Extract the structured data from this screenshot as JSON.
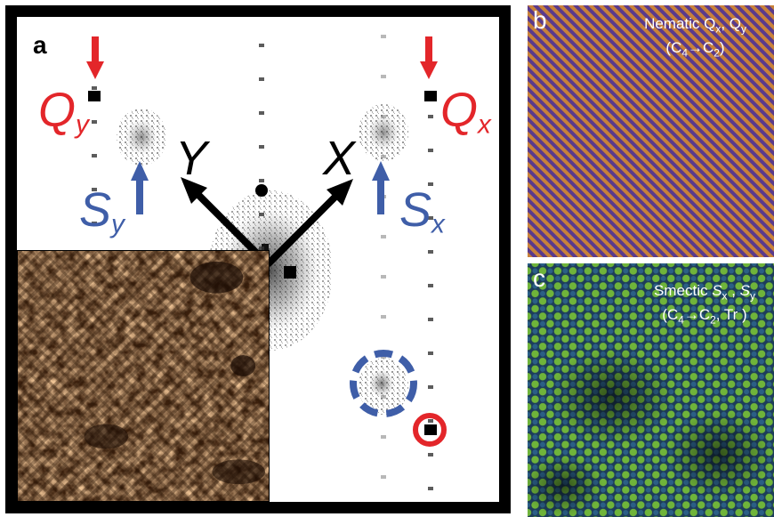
{
  "panel_a": {
    "letter": "a",
    "labels": {
      "qy_main": "Q",
      "qy_sub": "y",
      "qx_main": "Q",
      "qx_sub": "x",
      "sy_main": "S",
      "sy_sub": "y",
      "sx_main": "S",
      "sx_sub": "x",
      "axis_y": "Y",
      "axis_x": "X"
    }
  },
  "panel_b": {
    "letter": "b",
    "title_line1": "Nematic  Q",
    "title_sub1": "x",
    "title_sep": ", Q",
    "title_sub2": "y",
    "title_line2_a": "(C",
    "title_line2_sub_a": "4",
    "title_line2_arrow": "→C",
    "title_line2_sub_b": "2",
    "title_line2_b": ")"
  },
  "panel_c": {
    "letter": "c",
    "title_line1": "Smectic ",
    "title_s1": "S",
    "title_sub1": "x",
    "title_sep": " , ",
    "title_s2": "S",
    "title_sub2": "y",
    "title_line2_a": "(C",
    "title_line2_sub_a": "4",
    "title_line2_arrow": "→C",
    "title_line2_sub_b": "2",
    "title_line2_b": ", Tr )"
  },
  "colors": {
    "red": "#e3262a",
    "blue": "#3f5ea8",
    "nematic_orange": "#c8813a",
    "nematic_purple": "#5a3a8c",
    "smectic_green": "#6fb43a",
    "smectic_blue": "#2b5f86",
    "stm_copper": "#c98a52"
  }
}
